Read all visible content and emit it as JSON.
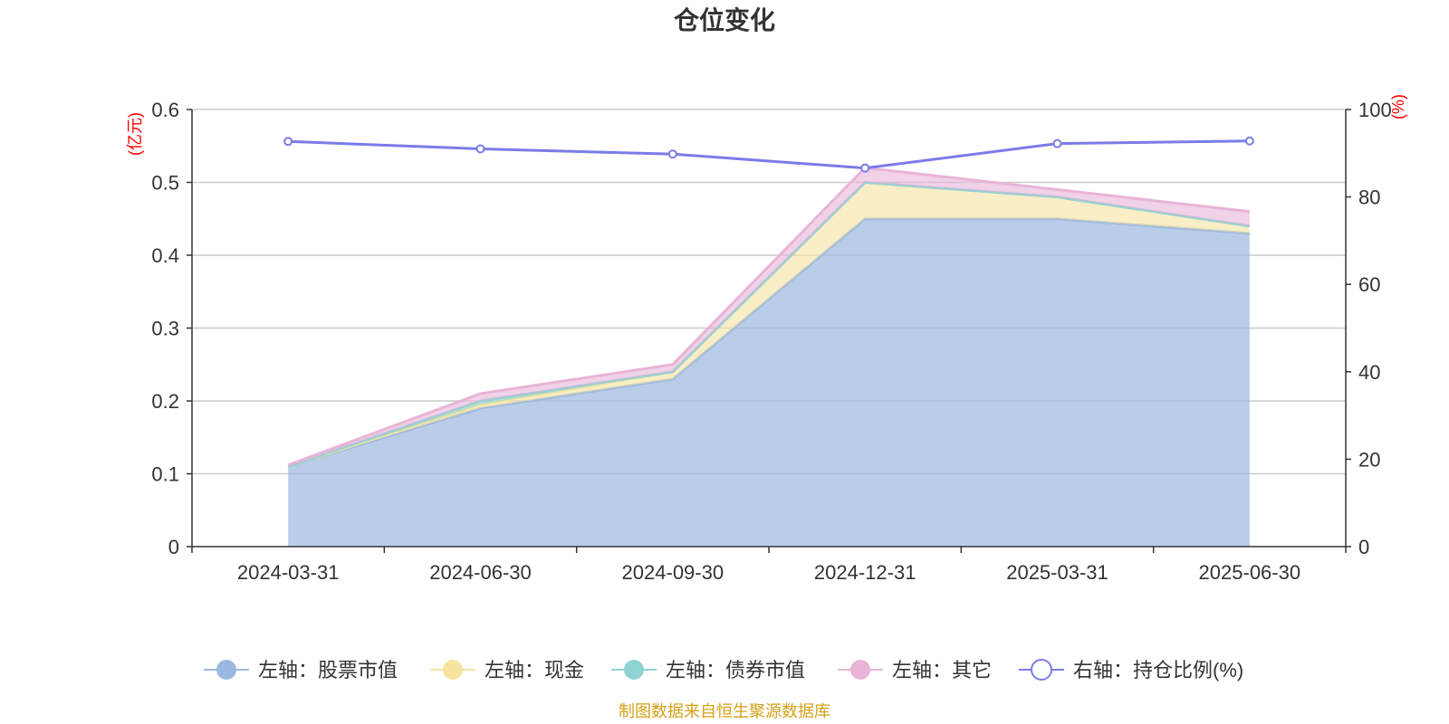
{
  "chart_data": {
    "type": "area",
    "title": "仓位变化",
    "categories": [
      "2024-03-31",
      "2024-06-30",
      "2024-09-30",
      "2024-12-31",
      "2025-03-31",
      "2025-06-30"
    ],
    "left_axis": {
      "unit": "(亿元)",
      "ylim": [
        0,
        0.6
      ],
      "ticks": [
        "0",
        "0.1",
        "0.2",
        "0.3",
        "0.4",
        "0.5",
        "0.6"
      ]
    },
    "right_axis": {
      "unit": "(%)",
      "ylim": [
        0,
        100
      ],
      "ticks": [
        "0",
        "20",
        "40",
        "60",
        "80",
        "100"
      ]
    },
    "grid": true,
    "legend_position": "bottom-center",
    "series": [
      {
        "name": "左轴：股票市值",
        "axis": "left",
        "stacked": true,
        "color": "#9bb8e0",
        "values": [
          0.11,
          0.19,
          0.23,
          0.45,
          0.45,
          0.43
        ]
      },
      {
        "name": "左轴：现金",
        "axis": "left",
        "stacked": true,
        "color": "#f7e3a0",
        "values": [
          0.0,
          0.005,
          0.01,
          0.05,
          0.03,
          0.01
        ]
      },
      {
        "name": "左轴：债券市值",
        "axis": "left",
        "stacked": true,
        "color": "#8fd3d3",
        "values": [
          0.0,
          0.005,
          0.0,
          0.0,
          0.0,
          0.0
        ]
      },
      {
        "name": "左轴：其它",
        "axis": "left",
        "stacked": true,
        "color": "#e8b4d8",
        "values": [
          0.002,
          0.01,
          0.01,
          0.02,
          0.01,
          0.02
        ]
      },
      {
        "name": "右轴：持仓比例(%)",
        "axis": "right",
        "type": "line",
        "color": "#7b7be8",
        "values": [
          92.7,
          91.0,
          89.8,
          86.6,
          92.2,
          92.8
        ]
      }
    ]
  },
  "source_note": "制图数据来自恒生聚源数据库"
}
